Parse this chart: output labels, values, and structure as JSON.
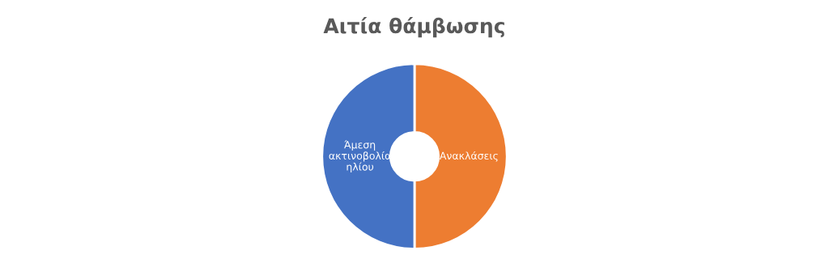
{
  "chart_data": {
    "type": "donut",
    "title": "Αιτία θάμβωσης",
    "categories": [
      "Ανακλάσεις",
      "Άμεση ακτινοβολία ηλίου"
    ],
    "values": [
      50,
      50
    ],
    "colors": [
      "#ed7d31",
      "#4472c4"
    ]
  }
}
